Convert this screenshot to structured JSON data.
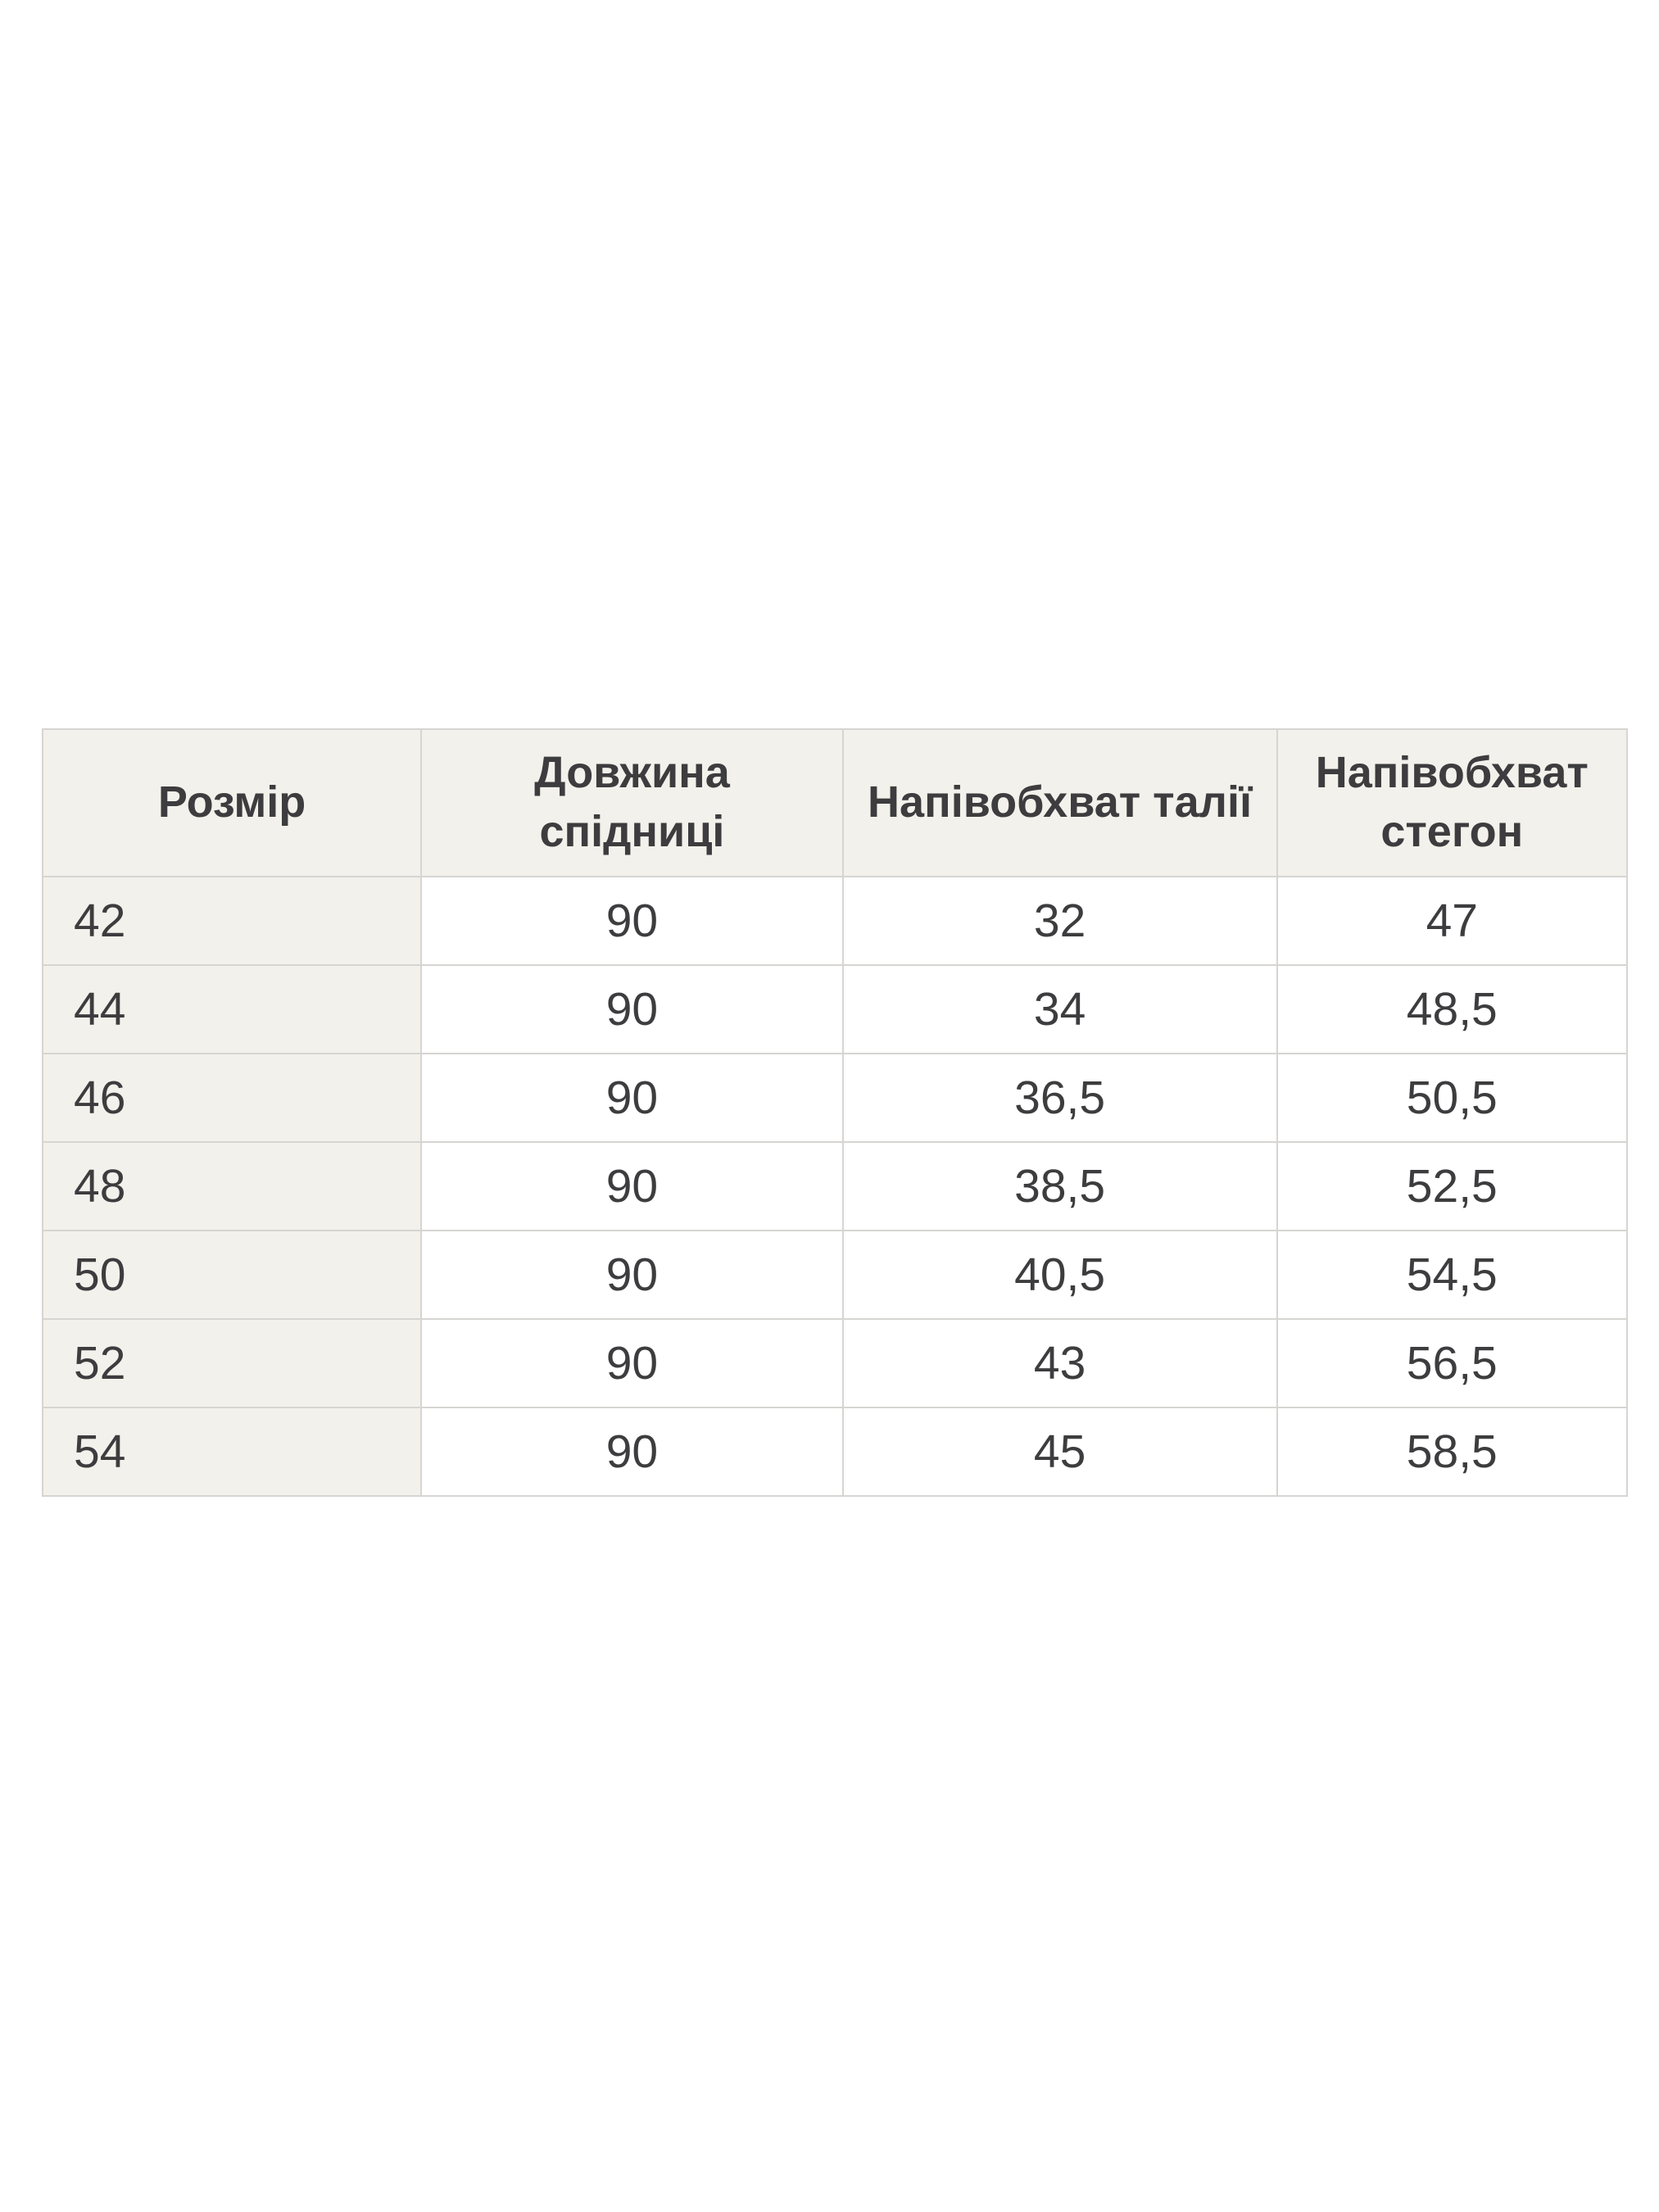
{
  "page": {
    "background_color": "#ffffff"
  },
  "size_chart": {
    "columns": [
      {
        "label": "Розмір"
      },
      {
        "label": "Довжина спідниці"
      },
      {
        "label": "Напівобхват талії"
      },
      {
        "label": "Напівобхват стегон"
      }
    ],
    "rows": [
      [
        "42",
        "90",
        "32",
        "47"
      ],
      [
        "44",
        "90",
        "34",
        "48,5"
      ],
      [
        "46",
        "90",
        "36,5",
        "50,5"
      ],
      [
        "48",
        "90",
        "38,5",
        "52,5"
      ],
      [
        "50",
        "90",
        "40,5",
        "54,5"
      ],
      [
        "52",
        "90",
        "43",
        "56,5"
      ],
      [
        "54",
        "90",
        "45",
        "58,5"
      ]
    ],
    "colors": {
      "header_background": "#f2f1eb",
      "first_column_background": "#f2f1eb",
      "cell_background": "#ffffff",
      "border": "#d6d5d2",
      "text": "#3d3c3e"
    }
  }
}
